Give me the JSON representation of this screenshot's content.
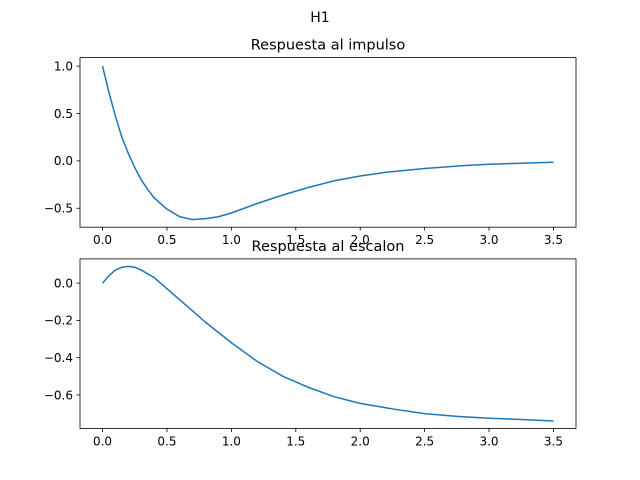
{
  "suptitle": "H1",
  "chart_data": [
    {
      "type": "line",
      "title": "Respuesta al impulso",
      "xlabel": "",
      "ylabel": "",
      "xlim": [
        -0.175,
        3.675
      ],
      "ylim": [
        -0.7,
        1.09
      ],
      "xticks": [
        0.0,
        0.5,
        1.0,
        1.5,
        2.0,
        2.5,
        3.0,
        3.5
      ],
      "xtick_labels": [
        "0.0",
        "0.5",
        "1.0",
        "1.5",
        "2.0",
        "2.5",
        "3.0",
        "3.5"
      ],
      "yticks": [
        -0.5,
        0.0,
        0.5,
        1.0
      ],
      "ytick_labels": [
        "−0.5",
        "0.0",
        "0.5",
        "1.0"
      ],
      "grid": false,
      "color": "#1f77b4",
      "series": [
        {
          "x": [
            0.0,
            0.05,
            0.1,
            0.15,
            0.2,
            0.25,
            0.3,
            0.35,
            0.4,
            0.5,
            0.6,
            0.7,
            0.8,
            0.9,
            1.0,
            1.1,
            1.2,
            1.4,
            1.6,
            1.8,
            2.0,
            2.2,
            2.5,
            2.8,
            3.0,
            3.25,
            3.5
          ],
          "y": [
            1.0,
            0.72,
            0.47,
            0.25,
            0.08,
            -0.07,
            -0.2,
            -0.3,
            -0.39,
            -0.51,
            -0.59,
            -0.62,
            -0.61,
            -0.59,
            -0.55,
            -0.5,
            -0.45,
            -0.36,
            -0.28,
            -0.21,
            -0.16,
            -0.12,
            -0.08,
            -0.05,
            -0.035,
            -0.025,
            -0.015
          ]
        }
      ]
    },
    {
      "type": "line",
      "title": "Respuesta al escalon",
      "xlabel": "",
      "ylabel": "",
      "xlim": [
        -0.175,
        3.675
      ],
      "ylim": [
        -0.78,
        0.13
      ],
      "xticks": [
        0.0,
        0.5,
        1.0,
        1.5,
        2.0,
        2.5,
        3.0,
        3.5
      ],
      "xtick_labels": [
        "0.0",
        "0.5",
        "1.0",
        "1.5",
        "2.0",
        "2.5",
        "3.0",
        "3.5"
      ],
      "yticks": [
        -0.6,
        -0.4,
        -0.2,
        0.0
      ],
      "ytick_labels": [
        "−0.6",
        "−0.4",
        "−0.2",
        "0.0"
      ],
      "grid": false,
      "color": "#1f77b4",
      "series": [
        {
          "x": [
            0.0,
            0.05,
            0.1,
            0.15,
            0.2,
            0.25,
            0.3,
            0.4,
            0.5,
            0.6,
            0.7,
            0.8,
            1.0,
            1.2,
            1.4,
            1.6,
            1.8,
            2.0,
            2.25,
            2.5,
            2.75,
            3.0,
            3.25,
            3.5
          ],
          "y": [
            0.0,
            0.04,
            0.07,
            0.085,
            0.09,
            0.085,
            0.07,
            0.03,
            -0.03,
            -0.09,
            -0.15,
            -0.21,
            -0.32,
            -0.42,
            -0.5,
            -0.56,
            -0.61,
            -0.645,
            -0.675,
            -0.7,
            -0.715,
            -0.725,
            -0.732,
            -0.74
          ]
        }
      ]
    }
  ]
}
